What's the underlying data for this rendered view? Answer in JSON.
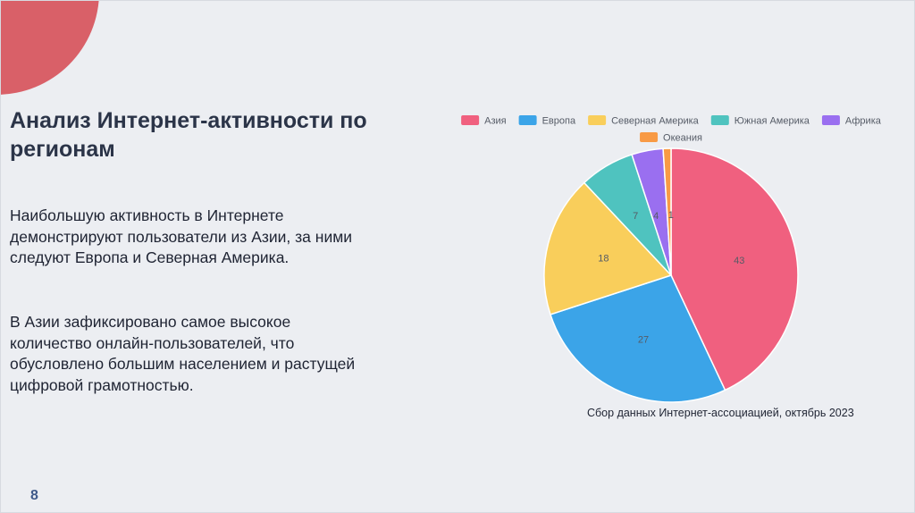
{
  "slide": {
    "title": "Анализ Интернет-активности по регионам",
    "paragraph1": "Наибольшую активность в Интернете демонстрируют пользователи из Азии, за ними следуют Европа и Северная Америка.",
    "paragraph2": "В Азии зафиксировано самое высокое количество онлайн-пользователей, что обусловлено большим населением и растущей цифровой грамотностью.",
    "caption": "Сбор данных Интернет-ассоциацией, октябрь 2023",
    "page_number": "8"
  },
  "chart_data": {
    "type": "pie",
    "title": "",
    "legend_position": "top",
    "slices": [
      {
        "label": "Азия",
        "value": 43,
        "color": "#f0607f"
      },
      {
        "label": "Европа",
        "value": 27,
        "color": "#3ba4e8"
      },
      {
        "label": "Северная Америка",
        "value": 18,
        "color": "#f9ce5b"
      },
      {
        "label": "Южная Америка",
        "value": 7,
        "color": "#4fc3bf"
      },
      {
        "label": "Африка",
        "value": 4,
        "color": "#9a6ff0"
      },
      {
        "label": "Океания",
        "value": 1,
        "color": "#f89a45"
      }
    ]
  }
}
